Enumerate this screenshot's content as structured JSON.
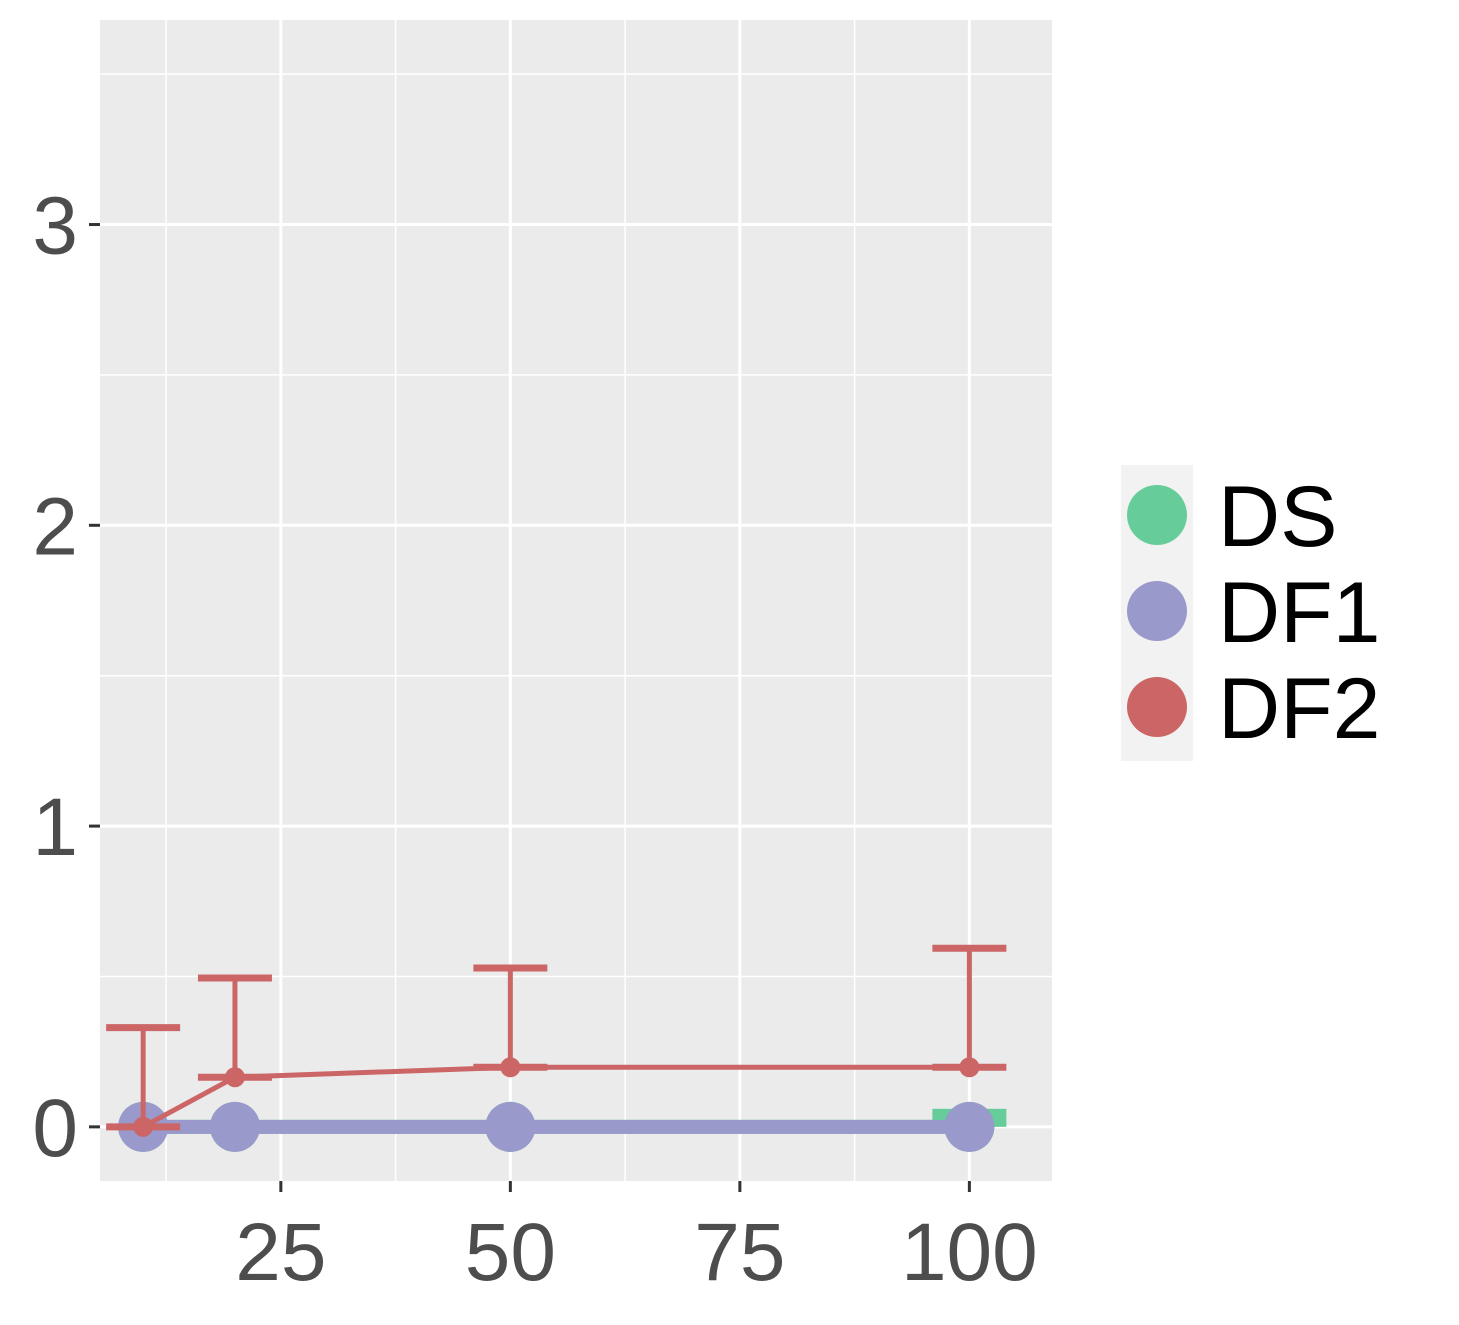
{
  "chart_data": {
    "type": "line",
    "title": "",
    "xlabel": "",
    "ylabel": "",
    "x": [
      10,
      20,
      50,
      100
    ],
    "xlim": [
      5.3,
      109
    ],
    "ylim": [
      -0.18,
      3.68
    ],
    "x_ticks": [
      25,
      50,
      75,
      100
    ],
    "x_tick_labels": [
      "25",
      "50",
      "75",
      "100"
    ],
    "y_ticks": [
      0,
      1,
      2,
      3
    ],
    "y_tick_labels": [
      "0",
      "1",
      "2",
      "3"
    ],
    "grid": true,
    "legend_position": "right",
    "series": [
      {
        "name": "DS",
        "color": "#66cc99",
        "values": [
          0,
          0,
          0,
          0
        ],
        "error_low": [
          0,
          0,
          0,
          0
        ],
        "error_high": [
          0,
          0,
          0,
          0.06
        ]
      },
      {
        "name": "DF1",
        "color": "#9999cc",
        "values": [
          0,
          0,
          0,
          0
        ],
        "error_low": [
          0,
          0,
          0,
          0
        ],
        "error_high": [
          0,
          0,
          0,
          0
        ]
      },
      {
        "name": "DF2",
        "color": "#cc6666",
        "values": [
          0,
          0.165,
          0.198,
          0.198
        ],
        "error_low": [
          0,
          0,
          0,
          0
        ],
        "error_high": [
          0.33,
          0.33,
          0.33,
          0.396
        ]
      }
    ]
  }
}
